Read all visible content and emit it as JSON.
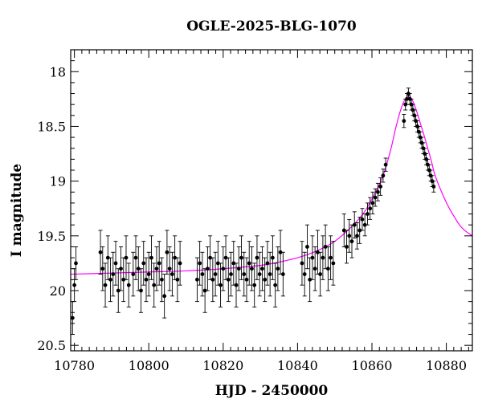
{
  "chart_data": {
    "type": "scatter",
    "title": "OGLE-2025-BLG-1070",
    "xlabel": "HJD - 2450000",
    "ylabel": "I magnitude",
    "xlim": [
      10779,
      10887
    ],
    "ylim": [
      20.55,
      17.8
    ],
    "y_inverted": true,
    "x_ticks": [
      10780,
      10800,
      10820,
      10840,
      10860,
      10880
    ],
    "x_tick_labels": [
      "10780",
      "10800",
      "10820",
      "10840",
      "10860",
      "10880"
    ],
    "y_ticks": [
      18,
      18.5,
      19,
      19.5,
      20,
      20.5
    ],
    "y_tick_labels": [
      "18",
      "18.5",
      "19",
      "19.5",
      "20",
      "20.5"
    ],
    "x_minor_step": 2,
    "y_minor_step": 0.1,
    "grid": false,
    "colors": {
      "data": "#000000",
      "model": "#ff00ff",
      "frame": "#000000"
    },
    "series": [
      {
        "kind": "points_with_errorbars",
        "x": [
          10779.5,
          10780.0,
          10780.4,
          10787.0,
          10787.6,
          10788.3,
          10789.0,
          10789.7,
          10790.4,
          10791.1,
          10791.8,
          10792.5,
          10793.2,
          10793.9,
          10794.6,
          10795.8,
          10796.5,
          10797.2,
          10797.9,
          10798.6,
          10799.3,
          10800.0,
          10800.7,
          10801.4,
          10802.1,
          10802.8,
          10803.5,
          10804.2,
          10804.9,
          10805.6,
          10806.3,
          10807.0,
          10807.7,
          10808.4,
          10813.0,
          10813.7,
          10814.4,
          10815.1,
          10815.8,
          10816.5,
          10817.2,
          10817.9,
          10818.6,
          10819.3,
          10820.0,
          10820.7,
          10821.4,
          10822.1,
          10822.8,
          10823.5,
          10824.2,
          10824.9,
          10825.6,
          10826.3,
          10827.0,
          10827.7,
          10828.4,
          10829.1,
          10829.8,
          10830.5,
          10831.2,
          10831.9,
          10832.6,
          10833.3,
          10834.0,
          10834.7,
          10835.4,
          10836.1,
          10841.2,
          10841.9,
          10842.6,
          10843.3,
          10844.0,
          10844.7,
          10845.4,
          10846.1,
          10846.8,
          10847.5,
          10848.2,
          10848.9,
          10849.6,
          10852.5,
          10853.2,
          10853.9,
          10854.6,
          10855.3,
          10856.0,
          10856.7,
          10857.4,
          10858.1,
          10858.8,
          10859.5,
          10860.2,
          10860.9,
          10861.6,
          10862.3,
          10863.0,
          10863.7,
          10868.6,
          10869.0,
          10869.4,
          10869.8,
          10870.2,
          10870.6,
          10871.0,
          10871.4,
          10871.8,
          10872.2,
          10872.6,
          10873.0,
          10873.4,
          10873.8,
          10874.2,
          10874.6,
          10875.0,
          10875.4,
          10875.8,
          10876.2,
          10876.6
        ],
        "y": [
          20.25,
          19.95,
          19.75,
          19.65,
          19.8,
          19.95,
          19.7,
          19.9,
          19.85,
          19.75,
          20.0,
          19.8,
          19.9,
          19.7,
          19.95,
          19.85,
          19.7,
          19.8,
          20.0,
          19.75,
          19.9,
          19.85,
          19.7,
          19.95,
          19.8,
          19.75,
          19.9,
          20.05,
          19.65,
          19.8,
          19.85,
          19.7,
          19.9,
          19.75,
          19.9,
          19.75,
          19.85,
          20.0,
          19.8,
          19.7,
          19.9,
          19.85,
          19.75,
          19.95,
          19.8,
          19.7,
          19.9,
          19.85,
          19.75,
          19.95,
          19.8,
          19.7,
          19.85,
          19.9,
          19.75,
          19.8,
          19.95,
          19.7,
          19.85,
          19.8,
          19.9,
          19.75,
          19.85,
          19.7,
          19.95,
          19.8,
          19.65,
          19.85,
          19.75,
          19.85,
          19.6,
          19.9,
          19.7,
          19.8,
          19.65,
          19.85,
          19.7,
          19.6,
          19.8,
          19.7,
          19.75,
          19.45,
          19.6,
          19.5,
          19.55,
          19.4,
          19.5,
          19.45,
          19.35,
          19.4,
          19.3,
          19.25,
          19.2,
          19.15,
          19.1,
          19.05,
          18.95,
          18.85,
          18.45,
          18.3,
          18.25,
          18.2,
          18.25,
          18.3,
          18.35,
          18.4,
          18.45,
          18.5,
          18.55,
          18.6,
          18.65,
          18.7,
          18.75,
          18.8,
          18.85,
          18.9,
          18.95,
          19.0,
          19.05
        ],
        "yerr": [
          0.15,
          0.15,
          0.15,
          0.2,
          0.2,
          0.2,
          0.2,
          0.2,
          0.2,
          0.2,
          0.2,
          0.2,
          0.2,
          0.2,
          0.2,
          0.2,
          0.2,
          0.2,
          0.2,
          0.2,
          0.2,
          0.2,
          0.2,
          0.2,
          0.2,
          0.2,
          0.2,
          0.2,
          0.2,
          0.2,
          0.2,
          0.2,
          0.2,
          0.2,
          0.2,
          0.2,
          0.2,
          0.2,
          0.2,
          0.2,
          0.2,
          0.2,
          0.2,
          0.2,
          0.2,
          0.2,
          0.2,
          0.2,
          0.2,
          0.2,
          0.2,
          0.2,
          0.2,
          0.2,
          0.2,
          0.2,
          0.2,
          0.2,
          0.2,
          0.2,
          0.2,
          0.2,
          0.2,
          0.2,
          0.2,
          0.2,
          0.2,
          0.2,
          0.2,
          0.2,
          0.2,
          0.2,
          0.2,
          0.2,
          0.2,
          0.2,
          0.2,
          0.2,
          0.2,
          0.2,
          0.2,
          0.15,
          0.15,
          0.15,
          0.15,
          0.12,
          0.12,
          0.12,
          0.1,
          0.1,
          0.1,
          0.1,
          0.1,
          0.08,
          0.08,
          0.08,
          0.06,
          0.06,
          0.06,
          0.05,
          0.05,
          0.05,
          0.05,
          0.05,
          0.05,
          0.05,
          0.05,
          0.05,
          0.05,
          0.05,
          0.05,
          0.05,
          0.05,
          0.05,
          0.05,
          0.05,
          0.05,
          0.05,
          0.05
        ]
      },
      {
        "kind": "model_curve",
        "x": [
          10779,
          10790,
          10800,
          10810,
          10820,
          10830,
          10835,
          10840,
          10845,
          10850,
          10855,
          10858,
          10861,
          10863,
          10865,
          10866.5,
          10868,
          10869,
          10870,
          10871,
          10872,
          10873,
          10874,
          10875,
          10876,
          10877,
          10879,
          10881,
          10884,
          10887
        ],
        "y": [
          19.85,
          19.84,
          19.83,
          19.82,
          19.8,
          19.77,
          19.74,
          19.7,
          19.64,
          19.55,
          19.4,
          19.28,
          19.1,
          18.95,
          18.72,
          18.5,
          18.32,
          18.25,
          18.22,
          18.27,
          18.36,
          18.47,
          18.58,
          18.7,
          18.82,
          18.95,
          19.12,
          19.26,
          19.42,
          19.5
        ]
      }
    ]
  }
}
